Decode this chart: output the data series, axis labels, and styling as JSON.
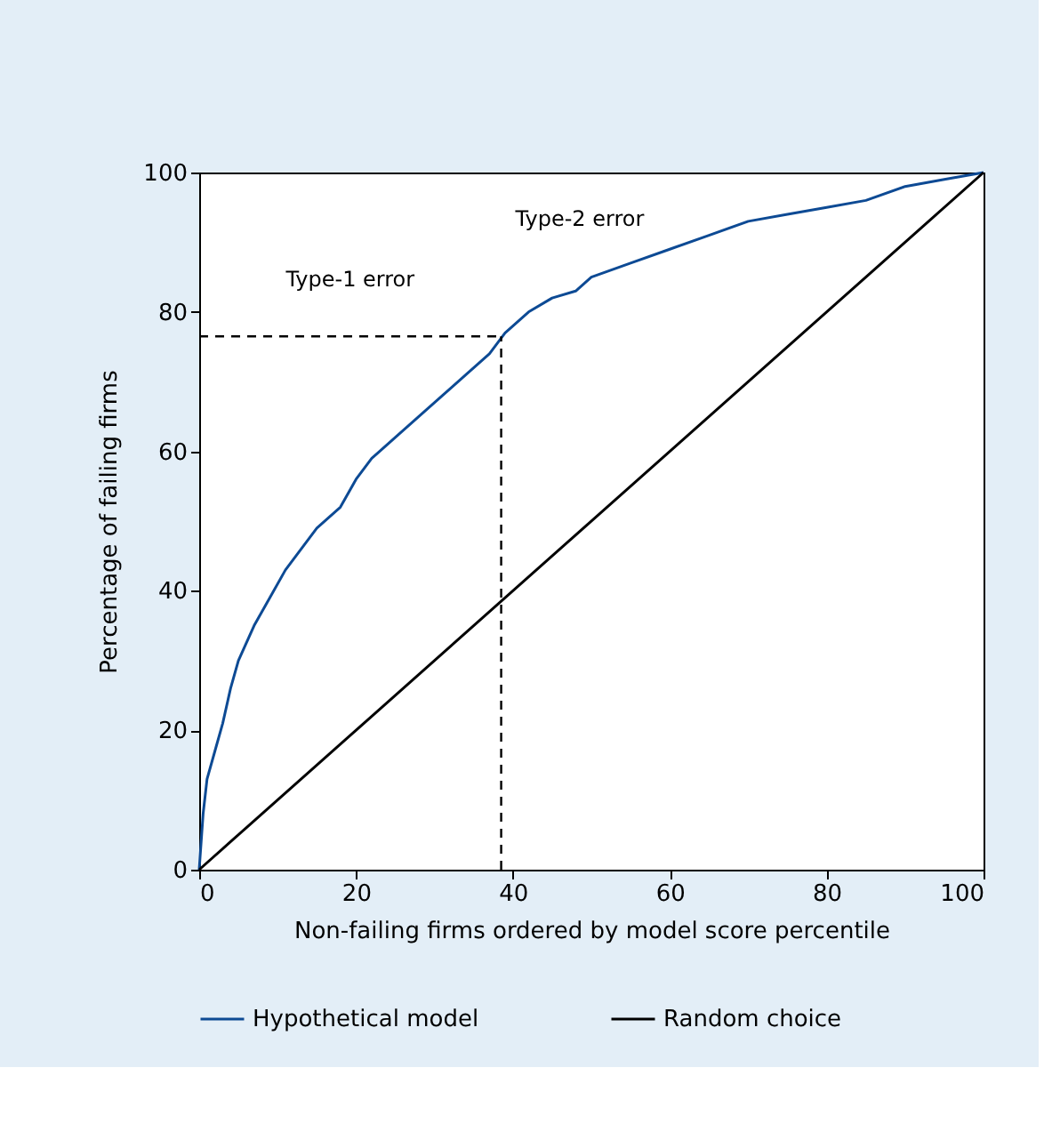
{
  "chart_data": {
    "type": "line",
    "xlabel": "Non-failing firms ordered by model score percentile",
    "ylabel": "Percentage of failing firms",
    "xlim": [
      0,
      100
    ],
    "ylim": [
      0,
      100
    ],
    "xticks": [
      0,
      20,
      40,
      60,
      80,
      100
    ],
    "yticks": [
      0,
      20,
      40,
      60,
      80,
      100
    ],
    "grid": false,
    "legend": "bottom",
    "marker": "none",
    "line_style": "solid",
    "series": [
      {
        "name": "Hypothetical model",
        "color": "#0d4a94",
        "x": [
          0,
          0.5,
          1,
          2,
          3,
          4,
          5,
          7,
          9,
          11,
          13,
          15,
          18,
          20,
          22,
          25,
          28,
          31,
          34,
          37,
          39,
          42,
          45,
          48,
          50,
          55,
          60,
          65,
          70,
          75,
          80,
          85,
          90,
          95,
          100
        ],
        "values": [
          0,
          8,
          13,
          17,
          21,
          26,
          30,
          35,
          39,
          43,
          46,
          49,
          52,
          56,
          59,
          62,
          65,
          68,
          71,
          74,
          77,
          80,
          82,
          83,
          85,
          87,
          89,
          91,
          93,
          94,
          95,
          96,
          98,
          99,
          100
        ]
      },
      {
        "name": "Random choice",
        "color": "#000000",
        "x": [
          0,
          100
        ],
        "values": [
          0,
          100
        ]
      }
    ],
    "ref_lines": [
      {
        "axis": "x",
        "value": 38.5,
        "line_style": "dashed",
        "color": "#000000"
      },
      {
        "axis": "y",
        "value": 76.5,
        "line_style": "dashed",
        "color": "#000000"
      }
    ],
    "annotations": [
      "Type-1 error",
      "Type-2 error"
    ]
  }
}
